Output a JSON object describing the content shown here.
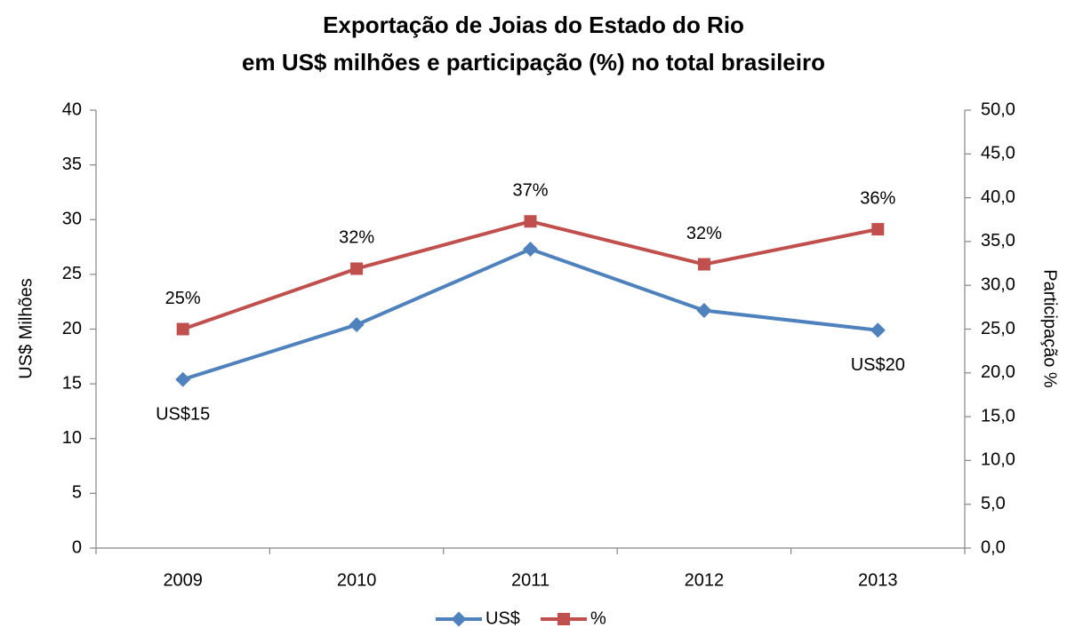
{
  "chart_data": {
    "type": "line",
    "title": [
      "Exportação de Joias do Estado do Rio",
      "em US$ milhões e participação (%) no total brasileiro"
    ],
    "y_label": "US$ Milhões",
    "y2_label": "Participação %",
    "categories": [
      "2009",
      "2010",
      "2011",
      "2012",
      "2013"
    ],
    "series": [
      {
        "name": "US$",
        "color": "#4f81bd",
        "marker": "diamond",
        "values": [
          15.4,
          20.4,
          27.3,
          21.7,
          19.9
        ],
        "value_labels": [
          "US$15",
          null,
          null,
          null,
          "US$20"
        ]
      },
      {
        "name": "%",
        "color": "#c0504d",
        "marker": "square",
        "axis": "y2",
        "values": [
          25,
          31.9,
          37.3,
          32.4,
          36.4
        ],
        "value_labels": [
          "25%",
          "32%",
          "37%",
          "32%",
          "36%"
        ]
      }
    ],
    "ylim": [
      0,
      40
    ],
    "yticks": [
      0,
      5,
      10,
      15,
      20,
      25,
      30,
      35,
      40
    ],
    "y2lim": [
      0,
      50
    ],
    "y2ticks": [
      {
        "value": 0,
        "label": "0,0"
      },
      {
        "value": 5,
        "label": "5,0"
      },
      {
        "value": 10,
        "label": "10,0"
      },
      {
        "value": 15,
        "label": "15,0"
      },
      {
        "value": 20,
        "label": "20,0"
      },
      {
        "value": 25,
        "label": "25,0"
      },
      {
        "value": 30,
        "label": "30,0"
      },
      {
        "value": 35,
        "label": "35,0"
      },
      {
        "value": 40,
        "label": "40,0"
      },
      {
        "value": 45,
        "label": "45,0"
      },
      {
        "value": 50,
        "label": "50,0"
      }
    ],
    "grid": false,
    "legend": "bottom"
  }
}
